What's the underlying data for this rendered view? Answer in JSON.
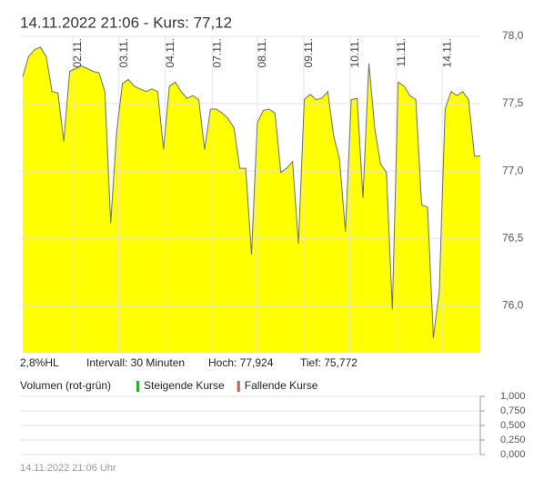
{
  "header": {
    "title": "14.11.2022  21:06  - Kurs: 77,12"
  },
  "stats": [
    "2,8%HL",
    "Intervall: 30 Minuten",
    "Hoch: 77,924",
    "Tief: 75,772"
  ],
  "footer": "14.11.2022 21:06 Uhr",
  "chart_data": [
    {
      "type": "area",
      "color": "#ffff00",
      "line_color": "#6e6e6e",
      "grid": true,
      "xlim": [
        0,
        78
      ],
      "xticks": [
        {
          "value": 8.5,
          "label": "02.11."
        },
        {
          "value": 16.4,
          "label": "03.11."
        },
        {
          "value": 24.3,
          "label": "04.11."
        },
        {
          "value": 32.3,
          "label": "07.11."
        },
        {
          "value": 40,
          "label": "08.11."
        },
        {
          "value": 47.9,
          "label": "09.11."
        },
        {
          "value": 55.8,
          "label": "10.11."
        },
        {
          "value": 63.7,
          "label": "11.11."
        },
        {
          "value": 71.5,
          "label": "14.11."
        }
      ],
      "ylim": [
        75.65,
        78.0
      ],
      "yticks": [
        {
          "value": 78.0,
          "label": "78,0"
        },
        {
          "value": 77.5,
          "label": "77,5"
        },
        {
          "value": 77.0,
          "label": "77,0"
        },
        {
          "value": 76.5,
          "label": "76,5"
        },
        {
          "value": 76.0,
          "label": "76,0"
        }
      ],
      "values": [
        77.7,
        77.85,
        77.9,
        77.92,
        77.85,
        77.59,
        77.58,
        77.22,
        77.74,
        77.76,
        77.78,
        77.76,
        77.74,
        77.73,
        77.59,
        76.61,
        77.29,
        77.65,
        77.68,
        77.63,
        77.61,
        77.59,
        77.61,
        77.59,
        77.16,
        77.63,
        77.66,
        77.59,
        77.54,
        77.56,
        77.53,
        77.16,
        77.46,
        77.46,
        77.43,
        77.39,
        77.32,
        77.02,
        77.02,
        76.38,
        77.36,
        77.45,
        77.46,
        77.43,
        76.99,
        77.02,
        77.07,
        76.46,
        77.53,
        77.57,
        77.53,
        77.54,
        77.59,
        77.26,
        77.09,
        76.55,
        77.53,
        77.54,
        76.8,
        77.8,
        77.32,
        77.05,
        76.99,
        75.97,
        77.66,
        77.63,
        77.56,
        77.53,
        76.75,
        76.73,
        75.76,
        76.11,
        77.46,
        77.59,
        77.56,
        77.59,
        77.53,
        77.11,
        77.11
      ]
    },
    {
      "type": "bar",
      "legend_title": "Volumen (rot-grün)",
      "grid": true,
      "ylim": [
        0,
        1
      ],
      "yticks": [
        {
          "value": 1,
          "label": "1,000"
        },
        {
          "value": 0.75,
          "label": "0,750"
        },
        {
          "value": 0.5,
          "label": "0,500"
        },
        {
          "value": 0.25,
          "label": "0,250"
        },
        {
          "value": 0,
          "label": "0,000"
        }
      ],
      "series": [
        {
          "name": "Steigende Kurse",
          "color": "#2fae2f",
          "values": []
        },
        {
          "name": "Fallende Kurse",
          "color": "#d9534f",
          "values": []
        }
      ]
    }
  ]
}
